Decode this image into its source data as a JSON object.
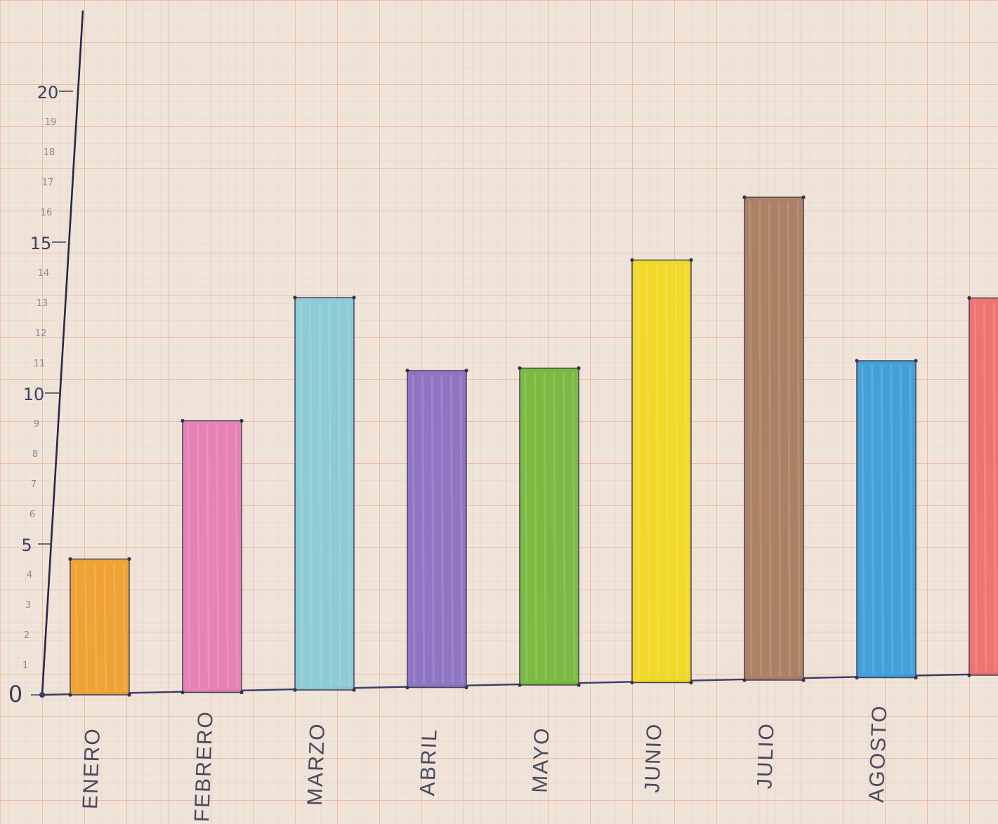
{
  "chart_data": {
    "type": "bar",
    "title": "",
    "xlabel": "",
    "ylabel": "",
    "categories": [
      "ENERO",
      "FEBRERO",
      "MARZO",
      "ABRIL",
      "MAYO",
      "JUNIO",
      "JULIO",
      "AGOSTO",
      ""
    ],
    "values": [
      4.5,
      9,
      13,
      10.5,
      10.5,
      14,
      16,
      10.5,
      12.5
    ],
    "bar_colors": [
      "#f0a02c",
      "#e87db4",
      "#88cbd6",
      "#8a70c2",
      "#77b83a",
      "#f3d820",
      "#a97c5e",
      "#3a9ed8",
      "#ee6f6c"
    ],
    "ylim": [
      0,
      20
    ],
    "major_ticks": [
      "0",
      "5",
      "10",
      "15",
      "20"
    ],
    "minor_ticks": [
      "1",
      "2",
      "3",
      "4",
      "6",
      "7",
      "8",
      "9",
      "11",
      "12",
      "13",
      "14",
      "16",
      "17",
      "18",
      "19"
    ],
    "grid": true,
    "legend": "none"
  }
}
